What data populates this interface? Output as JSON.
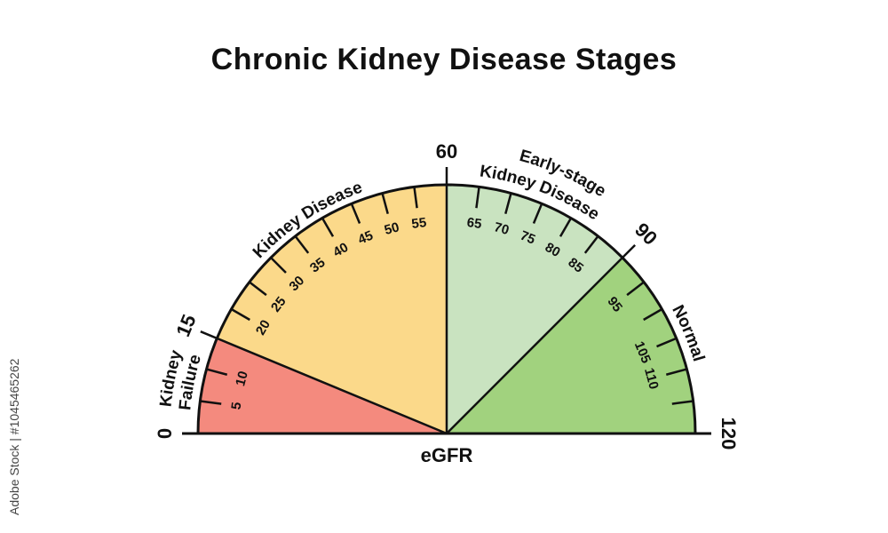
{
  "title": "Chronic Kidney Disease Stages",
  "watermark": "Adobe Stock | #1045465262",
  "gauge": {
    "axis_label": "eGFR",
    "min": 0,
    "max": 120,
    "boundary_labels": [
      "0",
      "15",
      "60",
      "90",
      "120"
    ],
    "stages": [
      {
        "name": "Kidney Failure",
        "lines": [
          "Kidney",
          "Failure"
        ],
        "from": 0,
        "to": 15,
        "color": "#f48a7e"
      },
      {
        "name": "Kidney Disease",
        "lines": [
          "Kidney Disease"
        ],
        "from": 15,
        "to": 60,
        "color": "#fbd98a"
      },
      {
        "name": "Early-stage Kidney Disease",
        "lines": [
          "Early-stage",
          "Kidney Disease"
        ],
        "from": 60,
        "to": 90,
        "color": "#c9e3c0"
      },
      {
        "name": "Normal",
        "lines": [
          "Normal"
        ],
        "from": 90,
        "to": 120,
        "color": "#a1d27e"
      }
    ],
    "minor_ticks": [
      5,
      10,
      20,
      25,
      30,
      35,
      40,
      45,
      50,
      55,
      65,
      70,
      75,
      80,
      85,
      95,
      100,
      105,
      110,
      115
    ],
    "tick_labels": [
      "5",
      "10",
      "20",
      "25",
      "30",
      "35",
      "40",
      "45",
      "50",
      "55",
      "65",
      "70",
      "75",
      "80",
      "85",
      "95",
      "105",
      "110"
    ]
  }
}
